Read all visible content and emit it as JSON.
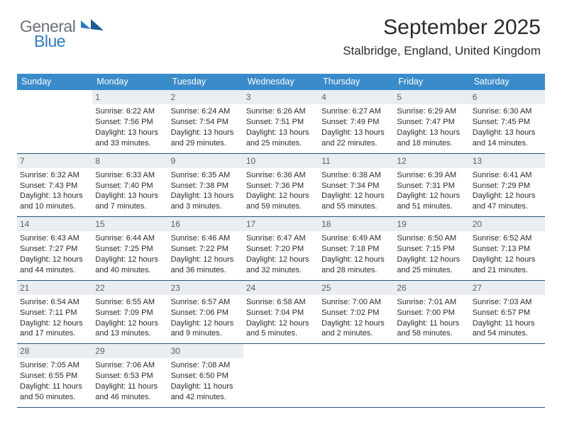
{
  "logo": {
    "general": "General",
    "blue": "Blue"
  },
  "header": {
    "month_title": "September 2025",
    "location": "Stalbridge, England, United Kingdom"
  },
  "styling": {
    "header_bg": "#3a8bc9",
    "header_text": "#ffffff",
    "daynum_bg": "#eaeef1",
    "daynum_text": "#5c6166",
    "rule_color": "#23547c",
    "body_text": "#2b2b2b",
    "logo_general_color": "#6a7178",
    "logo_blue_color": "#2f7bbf",
    "title_fontsize": 30,
    "location_fontsize": 17,
    "weekday_fontsize": 12.5,
    "cell_fontsize": 11
  },
  "weekdays": [
    "Sunday",
    "Monday",
    "Tuesday",
    "Wednesday",
    "Thursday",
    "Friday",
    "Saturday"
  ],
  "weeks": [
    [
      {
        "empty": true
      },
      {
        "num": "1",
        "sunrise": "Sunrise: 6:22 AM",
        "sunset": "Sunset: 7:56 PM",
        "daylight": "Daylight: 13 hours and 33 minutes."
      },
      {
        "num": "2",
        "sunrise": "Sunrise: 6:24 AM",
        "sunset": "Sunset: 7:54 PM",
        "daylight": "Daylight: 13 hours and 29 minutes."
      },
      {
        "num": "3",
        "sunrise": "Sunrise: 6:26 AM",
        "sunset": "Sunset: 7:51 PM",
        "daylight": "Daylight: 13 hours and 25 minutes."
      },
      {
        "num": "4",
        "sunrise": "Sunrise: 6:27 AM",
        "sunset": "Sunset: 7:49 PM",
        "daylight": "Daylight: 13 hours and 22 minutes."
      },
      {
        "num": "5",
        "sunrise": "Sunrise: 6:29 AM",
        "sunset": "Sunset: 7:47 PM",
        "daylight": "Daylight: 13 hours and 18 minutes."
      },
      {
        "num": "6",
        "sunrise": "Sunrise: 6:30 AM",
        "sunset": "Sunset: 7:45 PM",
        "daylight": "Daylight: 13 hours and 14 minutes."
      }
    ],
    [
      {
        "num": "7",
        "sunrise": "Sunrise: 6:32 AM",
        "sunset": "Sunset: 7:43 PM",
        "daylight": "Daylight: 13 hours and 10 minutes."
      },
      {
        "num": "8",
        "sunrise": "Sunrise: 6:33 AM",
        "sunset": "Sunset: 7:40 PM",
        "daylight": "Daylight: 13 hours and 7 minutes."
      },
      {
        "num": "9",
        "sunrise": "Sunrise: 6:35 AM",
        "sunset": "Sunset: 7:38 PM",
        "daylight": "Daylight: 13 hours and 3 minutes."
      },
      {
        "num": "10",
        "sunrise": "Sunrise: 6:36 AM",
        "sunset": "Sunset: 7:36 PM",
        "daylight": "Daylight: 12 hours and 59 minutes."
      },
      {
        "num": "11",
        "sunrise": "Sunrise: 6:38 AM",
        "sunset": "Sunset: 7:34 PM",
        "daylight": "Daylight: 12 hours and 55 minutes."
      },
      {
        "num": "12",
        "sunrise": "Sunrise: 6:39 AM",
        "sunset": "Sunset: 7:31 PM",
        "daylight": "Daylight: 12 hours and 51 minutes."
      },
      {
        "num": "13",
        "sunrise": "Sunrise: 6:41 AM",
        "sunset": "Sunset: 7:29 PM",
        "daylight": "Daylight: 12 hours and 47 minutes."
      }
    ],
    [
      {
        "num": "14",
        "sunrise": "Sunrise: 6:43 AM",
        "sunset": "Sunset: 7:27 PM",
        "daylight": "Daylight: 12 hours and 44 minutes."
      },
      {
        "num": "15",
        "sunrise": "Sunrise: 6:44 AM",
        "sunset": "Sunset: 7:25 PM",
        "daylight": "Daylight: 12 hours and 40 minutes."
      },
      {
        "num": "16",
        "sunrise": "Sunrise: 6:46 AM",
        "sunset": "Sunset: 7:22 PM",
        "daylight": "Daylight: 12 hours and 36 minutes."
      },
      {
        "num": "17",
        "sunrise": "Sunrise: 6:47 AM",
        "sunset": "Sunset: 7:20 PM",
        "daylight": "Daylight: 12 hours and 32 minutes."
      },
      {
        "num": "18",
        "sunrise": "Sunrise: 6:49 AM",
        "sunset": "Sunset: 7:18 PM",
        "daylight": "Daylight: 12 hours and 28 minutes."
      },
      {
        "num": "19",
        "sunrise": "Sunrise: 6:50 AM",
        "sunset": "Sunset: 7:15 PM",
        "daylight": "Daylight: 12 hours and 25 minutes."
      },
      {
        "num": "20",
        "sunrise": "Sunrise: 6:52 AM",
        "sunset": "Sunset: 7:13 PM",
        "daylight": "Daylight: 12 hours and 21 minutes."
      }
    ],
    [
      {
        "num": "21",
        "sunrise": "Sunrise: 6:54 AM",
        "sunset": "Sunset: 7:11 PM",
        "daylight": "Daylight: 12 hours and 17 minutes."
      },
      {
        "num": "22",
        "sunrise": "Sunrise: 6:55 AM",
        "sunset": "Sunset: 7:09 PM",
        "daylight": "Daylight: 12 hours and 13 minutes."
      },
      {
        "num": "23",
        "sunrise": "Sunrise: 6:57 AM",
        "sunset": "Sunset: 7:06 PM",
        "daylight": "Daylight: 12 hours and 9 minutes."
      },
      {
        "num": "24",
        "sunrise": "Sunrise: 6:58 AM",
        "sunset": "Sunset: 7:04 PM",
        "daylight": "Daylight: 12 hours and 5 minutes."
      },
      {
        "num": "25",
        "sunrise": "Sunrise: 7:00 AM",
        "sunset": "Sunset: 7:02 PM",
        "daylight": "Daylight: 12 hours and 2 minutes."
      },
      {
        "num": "26",
        "sunrise": "Sunrise: 7:01 AM",
        "sunset": "Sunset: 7:00 PM",
        "daylight": "Daylight: 11 hours and 58 minutes."
      },
      {
        "num": "27",
        "sunrise": "Sunrise: 7:03 AM",
        "sunset": "Sunset: 6:57 PM",
        "daylight": "Daylight: 11 hours and 54 minutes."
      }
    ],
    [
      {
        "num": "28",
        "sunrise": "Sunrise: 7:05 AM",
        "sunset": "Sunset: 6:55 PM",
        "daylight": "Daylight: 11 hours and 50 minutes."
      },
      {
        "num": "29",
        "sunrise": "Sunrise: 7:06 AM",
        "sunset": "Sunset: 6:53 PM",
        "daylight": "Daylight: 11 hours and 46 minutes."
      },
      {
        "num": "30",
        "sunrise": "Sunrise: 7:08 AM",
        "sunset": "Sunset: 6:50 PM",
        "daylight": "Daylight: 11 hours and 42 minutes."
      },
      {
        "empty": true
      },
      {
        "empty": true
      },
      {
        "empty": true
      },
      {
        "empty": true
      }
    ]
  ]
}
